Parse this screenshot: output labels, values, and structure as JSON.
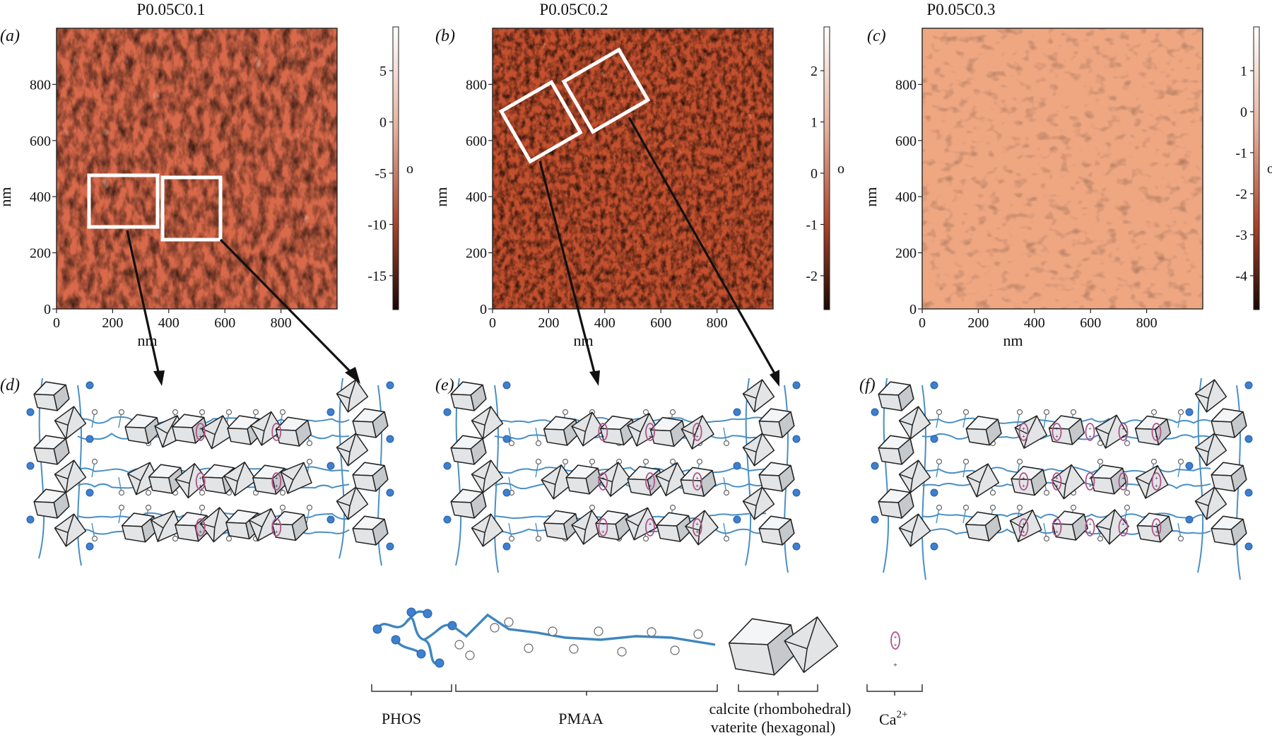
{
  "figure": {
    "panel_titles": [
      "P0.05C0.1",
      "P0.05C0.2",
      "P0.05C0.3"
    ],
    "panel_labels": [
      "(a)",
      "(b)",
      "(c)",
      "(d)",
      "(e)",
      "(f)"
    ],
    "afm_panels": [
      {
        "id": "a",
        "title": "P0.05C0.1",
        "x_ticks": [
          "0",
          "200",
          "400",
          "600",
          "800"
        ],
        "y_ticks": [
          "0",
          "200",
          "400",
          "600",
          "800"
        ],
        "x_label": "nm",
        "y_label": "nm",
        "colorbar_ticks": [
          "5",
          "0",
          "-5",
          "-10",
          "-15"
        ],
        "colorbar_unit": "o",
        "surface_color": "#d8694a"
      },
      {
        "id": "b",
        "title": "P0.05C0.2",
        "x_ticks": [
          "0",
          "200",
          "400",
          "600",
          "800"
        ],
        "y_ticks": [
          "0",
          "200",
          "400",
          "600",
          "800"
        ],
        "x_label": "nm",
        "y_label": "nm",
        "colorbar_ticks": [
          "2",
          "1",
          "0",
          "-1",
          "-2"
        ],
        "colorbar_unit": "o",
        "surface_color": "#c4502e"
      },
      {
        "id": "c",
        "title": "P0.05C0.3",
        "x_ticks": [
          "0",
          "200",
          "400",
          "600",
          "800"
        ],
        "y_ticks": [
          "0",
          "200",
          "400",
          "600",
          "800"
        ],
        "x_label": "nm",
        "y_label": "nm",
        "colorbar_ticks": [
          "1",
          "0",
          "-1",
          "-2",
          "-3",
          "-4"
        ],
        "colorbar_unit": "o",
        "surface_color": "#efa782"
      }
    ],
    "legend": {
      "phos": "PHOS",
      "pmaa": "PMAA",
      "crystal_line1": "calcite (rhombohedral)",
      "crystal_line2": "vaterite (hexagonal)",
      "calcium": "Ca",
      "calcium_sup": "2+"
    }
  }
}
